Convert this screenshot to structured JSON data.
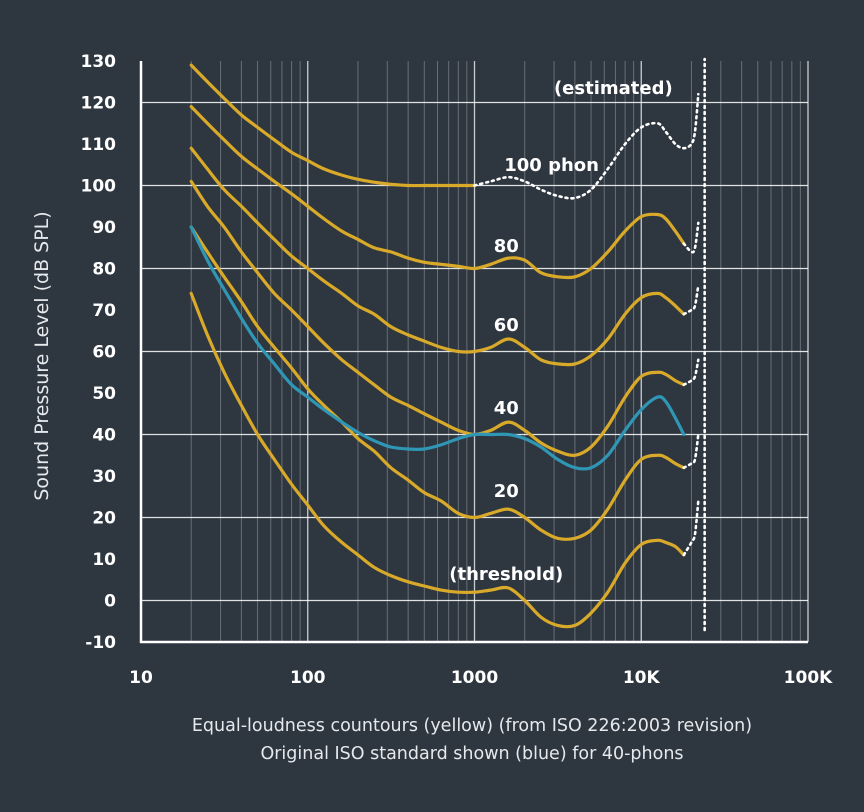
{
  "chart_data": {
    "type": "line",
    "xscale": "log",
    "xlim": [
      10,
      100000
    ],
    "ylim": [
      -10,
      130
    ],
    "ylabel": "Sound Pressure Level (dB SPL)",
    "xlabel": "",
    "caption": [
      "Equal-loudness countours (yellow) (from ISO 226:2003 revision)",
      "Original ISO standard shown (blue) for 40-phons"
    ],
    "xticks": [
      {
        "value": 10,
        "label": "10"
      },
      {
        "value": 100,
        "label": "100"
      },
      {
        "value": 1000,
        "label": "1000"
      },
      {
        "value": 10000,
        "label": "10K"
      },
      {
        "value": 100000,
        "label": "100K"
      }
    ],
    "yticks": [
      -10,
      0,
      10,
      20,
      30,
      40,
      50,
      60,
      70,
      80,
      90,
      100,
      110,
      120,
      130
    ],
    "grid": true,
    "colors": {
      "yellow": "#d9aa2a",
      "blue": "#2f97b5",
      "grid": "#ffffff",
      "background": "#2e3640"
    },
    "series": [
      {
        "name": "(threshold)",
        "color": "#d9aa2a",
        "style": "solid",
        "points": [
          [
            20,
            74
          ],
          [
            25,
            64
          ],
          [
            31.5,
            55
          ],
          [
            40,
            47
          ],
          [
            50,
            40
          ],
          [
            63,
            34
          ],
          [
            80,
            28
          ],
          [
            100,
            23
          ],
          [
            125,
            18
          ],
          [
            160,
            14
          ],
          [
            200,
            11
          ],
          [
            250,
            8
          ],
          [
            315,
            6
          ],
          [
            400,
            4.5
          ],
          [
            500,
            3.5
          ],
          [
            630,
            2.5
          ],
          [
            800,
            2
          ],
          [
            1000,
            2
          ],
          [
            1250,
            2.5
          ],
          [
            1600,
            3
          ],
          [
            2000,
            0
          ],
          [
            2500,
            -4
          ],
          [
            3150,
            -6
          ],
          [
            4000,
            -6
          ],
          [
            5000,
            -3
          ],
          [
            6300,
            2
          ],
          [
            8000,
            9
          ],
          [
            10000,
            13.5
          ],
          [
            12500,
            14.5
          ],
          [
            14000,
            14
          ],
          [
            16000,
            13
          ],
          [
            18000,
            11
          ]
        ],
        "dashed_points": [
          [
            18000,
            11
          ],
          [
            20000,
            14
          ],
          [
            21000,
            16
          ],
          [
            22000,
            24
          ]
        ]
      },
      {
        "name": "20",
        "color": "#d9aa2a",
        "style": "solid",
        "points": [
          [
            20,
            90
          ],
          [
            25,
            84
          ],
          [
            31.5,
            78
          ],
          [
            40,
            72
          ],
          [
            50,
            66
          ],
          [
            63,
            61
          ],
          [
            80,
            56
          ],
          [
            100,
            51
          ],
          [
            125,
            47
          ],
          [
            160,
            43
          ],
          [
            200,
            39
          ],
          [
            250,
            36
          ],
          [
            315,
            32
          ],
          [
            400,
            29
          ],
          [
            500,
            26
          ],
          [
            630,
            24
          ],
          [
            800,
            21
          ],
          [
            1000,
            20
          ],
          [
            1250,
            21
          ],
          [
            1600,
            22
          ],
          [
            2000,
            20
          ],
          [
            2500,
            17
          ],
          [
            3150,
            15
          ],
          [
            4000,
            15
          ],
          [
            5000,
            17
          ],
          [
            6300,
            22
          ],
          [
            8000,
            29
          ],
          [
            10000,
            34
          ],
          [
            12500,
            35
          ],
          [
            14000,
            34.5
          ],
          [
            16000,
            33
          ],
          [
            18000,
            32
          ]
        ],
        "dashed_points": [
          [
            18000,
            32
          ],
          [
            20000,
            33
          ],
          [
            21000,
            34
          ],
          [
            22000,
            40
          ]
        ]
      },
      {
        "name": "40",
        "color": "#d9aa2a",
        "style": "solid",
        "points": [
          [
            20,
            101
          ],
          [
            25,
            95
          ],
          [
            31.5,
            90
          ],
          [
            40,
            84
          ],
          [
            50,
            79
          ],
          [
            63,
            74
          ],
          [
            80,
            70
          ],
          [
            100,
            66
          ],
          [
            125,
            62
          ],
          [
            160,
            58
          ],
          [
            200,
            55
          ],
          [
            250,
            52
          ],
          [
            315,
            49
          ],
          [
            400,
            47
          ],
          [
            500,
            45
          ],
          [
            630,
            43
          ],
          [
            800,
            41
          ],
          [
            1000,
            40
          ],
          [
            1250,
            41
          ],
          [
            1600,
            43
          ],
          [
            2000,
            41
          ],
          [
            2500,
            38
          ],
          [
            3150,
            36
          ],
          [
            4000,
            35
          ],
          [
            5000,
            37
          ],
          [
            6300,
            42
          ],
          [
            8000,
            49
          ],
          [
            10000,
            54
          ],
          [
            12500,
            55
          ],
          [
            14000,
            54.5
          ],
          [
            16000,
            53
          ],
          [
            18000,
            52
          ]
        ],
        "dashed_points": [
          [
            18000,
            52
          ],
          [
            20000,
            53
          ],
          [
            21000,
            54
          ],
          [
            22000,
            58
          ]
        ]
      },
      {
        "name": "60",
        "color": "#d9aa2a",
        "style": "solid",
        "points": [
          [
            20,
            109
          ],
          [
            25,
            104
          ],
          [
            31.5,
            99
          ],
          [
            40,
            95
          ],
          [
            50,
            91
          ],
          [
            63,
            87
          ],
          [
            80,
            83
          ],
          [
            100,
            80
          ],
          [
            125,
            77
          ],
          [
            160,
            74
          ],
          [
            200,
            71
          ],
          [
            250,
            69
          ],
          [
            315,
            66
          ],
          [
            400,
            64
          ],
          [
            500,
            62.5
          ],
          [
            630,
            61
          ],
          [
            800,
            60
          ],
          [
            1000,
            60
          ],
          [
            1250,
            61
          ],
          [
            1600,
            63
          ],
          [
            2000,
            61
          ],
          [
            2500,
            58
          ],
          [
            3150,
            57
          ],
          [
            4000,
            57
          ],
          [
            5000,
            59
          ],
          [
            6300,
            63
          ],
          [
            8000,
            69
          ],
          [
            10000,
            73
          ],
          [
            12500,
            74
          ],
          [
            14000,
            73
          ],
          [
            16000,
            71
          ],
          [
            18000,
            69
          ]
        ],
        "dashed_points": [
          [
            18000,
            69
          ],
          [
            20000,
            70
          ],
          [
            21000,
            71
          ],
          [
            22000,
            76
          ]
        ]
      },
      {
        "name": "80",
        "color": "#d9aa2a",
        "style": "solid",
        "points": [
          [
            20,
            119
          ],
          [
            25,
            115
          ],
          [
            31.5,
            111
          ],
          [
            40,
            107
          ],
          [
            50,
            104
          ],
          [
            63,
            101
          ],
          [
            80,
            98
          ],
          [
            100,
            95
          ],
          [
            125,
            92
          ],
          [
            160,
            89
          ],
          [
            200,
            87
          ],
          [
            250,
            85
          ],
          [
            315,
            84
          ],
          [
            400,
            82.5
          ],
          [
            500,
            81.5
          ],
          [
            630,
            81
          ],
          [
            800,
            80.5
          ],
          [
            1000,
            80
          ],
          [
            1250,
            81
          ],
          [
            1600,
            82.5
          ],
          [
            2000,
            82
          ],
          [
            2500,
            79
          ],
          [
            3150,
            78
          ],
          [
            4000,
            78
          ],
          [
            5000,
            80
          ],
          [
            6300,
            84
          ],
          [
            8000,
            89
          ],
          [
            10000,
            92.5
          ],
          [
            12500,
            93
          ],
          [
            14000,
            92
          ],
          [
            16000,
            89
          ],
          [
            18000,
            86
          ]
        ],
        "dashed_points": [
          [
            18000,
            86
          ],
          [
            20000,
            84
          ],
          [
            21000,
            85
          ],
          [
            22000,
            91
          ]
        ]
      },
      {
        "name": "100 phon",
        "color": "#d9aa2a",
        "style": "solid",
        "points": [
          [
            20,
            129
          ],
          [
            25,
            125
          ],
          [
            31.5,
            121
          ],
          [
            40,
            117
          ],
          [
            50,
            114
          ],
          [
            63,
            111
          ],
          [
            80,
            108
          ],
          [
            100,
            106
          ],
          [
            125,
            104
          ],
          [
            160,
            102.5
          ],
          [
            200,
            101.5
          ],
          [
            250,
            100.8
          ],
          [
            315,
            100.3
          ],
          [
            400,
            100
          ],
          [
            500,
            100
          ],
          [
            630,
            100
          ],
          [
            800,
            100
          ],
          [
            1000,
            100
          ]
        ],
        "dashed_points": [
          [
            1000,
            100
          ],
          [
            1250,
            101
          ],
          [
            1600,
            102
          ],
          [
            2000,
            101
          ],
          [
            2500,
            99
          ],
          [
            3150,
            97.5
          ],
          [
            4000,
            97
          ],
          [
            5000,
            99
          ],
          [
            6300,
            104
          ],
          [
            8000,
            110
          ],
          [
            10000,
            114
          ],
          [
            12500,
            115
          ],
          [
            14000,
            113
          ],
          [
            16000,
            110
          ],
          [
            18000,
            109
          ],
          [
            20000,
            110
          ],
          [
            21000,
            113
          ],
          [
            22000,
            122
          ]
        ]
      },
      {
        "name": "",
        "color": "#2f97b5",
        "style": "solid",
        "points": [
          [
            20,
            90
          ],
          [
            25,
            82
          ],
          [
            31.5,
            75
          ],
          [
            40,
            68
          ],
          [
            50,
            62
          ],
          [
            63,
            57
          ],
          [
            80,
            52
          ],
          [
            100,
            49
          ],
          [
            125,
            46
          ],
          [
            160,
            43
          ],
          [
            200,
            40.5
          ],
          [
            250,
            38.5
          ],
          [
            315,
            37
          ],
          [
            400,
            36.5
          ],
          [
            500,
            36.5
          ],
          [
            630,
            37.5
          ],
          [
            800,
            39
          ],
          [
            1000,
            40
          ],
          [
            1250,
            40
          ],
          [
            1600,
            40
          ],
          [
            2000,
            39
          ],
          [
            2500,
            37
          ],
          [
            3150,
            34
          ],
          [
            4000,
            32
          ],
          [
            5000,
            32
          ],
          [
            6300,
            35
          ],
          [
            8000,
            41
          ],
          [
            10000,
            46
          ],
          [
            12500,
            49
          ],
          [
            14000,
            48
          ],
          [
            16000,
            44
          ],
          [
            18000,
            40
          ]
        ]
      }
    ],
    "vertical_dotted": {
      "x": 24000,
      "y": [
        -10,
        130
      ]
    },
    "annotations": [
      {
        "text": "(estimated)",
        "x": 6800,
        "y": 122
      },
      {
        "text": "100 phon",
        "x": 2900,
        "y": 103.5
      },
      {
        "text": "80",
        "x": 1550,
        "y": 84
      },
      {
        "text": "60",
        "x": 1550,
        "y": 65
      },
      {
        "text": "40",
        "x": 1550,
        "y": 45
      },
      {
        "text": "20",
        "x": 1550,
        "y": 25
      },
      {
        "text": "(threshold)",
        "x": 1550,
        "y": 5
      }
    ]
  }
}
